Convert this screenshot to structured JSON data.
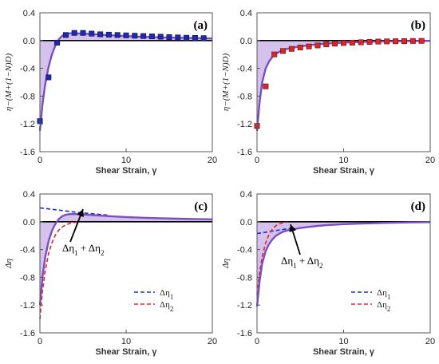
{
  "chart_data": [
    {
      "type": "line",
      "panel_label": "(a)",
      "xlabel": "Shear Strain, γ",
      "ylabel": "η−(M+(1−N)D)",
      "xlim": [
        0,
        20
      ],
      "ylim": [
        -1.6,
        0.4
      ],
      "xticks": [
        "0",
        "10",
        "20"
      ],
      "yticks": [
        "0.4",
        "0.0",
        "-0.4",
        "-0.8",
        "-1.2",
        "-1.6"
      ],
      "fill_color": "#cdb7ea",
      "curve_color": "#7c4fbf",
      "marker_color": "#1f2aa8",
      "marker_edge": "#0a0f60",
      "curve": {
        "x": [
          0,
          0.3,
          0.6,
          1.0,
          1.4,
          1.8,
          2.2,
          2.6,
          3.0,
          3.5,
          4.0,
          5,
          6,
          7,
          8,
          10,
          12,
          14,
          16,
          18,
          20
        ],
        "y": [
          -1.3,
          -0.92,
          -0.64,
          -0.38,
          -0.2,
          -0.07,
          0.02,
          0.07,
          0.095,
          0.105,
          0.105,
          0.1,
          0.093,
          0.085,
          0.077,
          0.064,
          0.054,
          0.046,
          0.04,
          0.035,
          0.03
        ]
      },
      "markers": {
        "x": [
          0,
          1,
          2,
          3,
          4,
          5,
          6,
          7,
          8,
          9,
          10,
          11,
          12,
          13,
          14,
          15,
          16,
          17,
          18,
          19
        ],
        "y": [
          -1.16,
          -0.53,
          -0.03,
          0.08,
          0.11,
          0.11,
          0.1,
          0.09,
          0.085,
          0.08,
          0.075,
          0.07,
          0.065,
          0.06,
          0.055,
          0.05,
          0.045,
          0.04,
          0.038,
          0.035
        ]
      },
      "legend": []
    },
    {
      "type": "line",
      "panel_label": "(b)",
      "xlabel": "Shear Strain, γ",
      "ylabel": "η−(M+(1−N)D)",
      "xlim": [
        0,
        20
      ],
      "ylim": [
        -1.6,
        0.4
      ],
      "xticks": [
        "0",
        "10",
        "20"
      ],
      "yticks": [
        "0.4",
        "0.0",
        "-0.4",
        "-0.8",
        "-1.2",
        "-1.6"
      ],
      "fill_color": "#cdb7ea",
      "curve_color": "#7c4fbf",
      "marker_color": "#d8262a",
      "marker_edge": "#6a0b0d",
      "curve": {
        "x": [
          0,
          0.3,
          0.6,
          1.0,
          1.4,
          1.8,
          2.2,
          2.6,
          3.0,
          3.5,
          4.0,
          5,
          6,
          7,
          8,
          10,
          12,
          14,
          16,
          18,
          20
        ],
        "y": [
          -1.3,
          -0.88,
          -0.6,
          -0.4,
          -0.3,
          -0.23,
          -0.19,
          -0.16,
          -0.14,
          -0.12,
          -0.105,
          -0.085,
          -0.068,
          -0.055,
          -0.045,
          -0.03,
          -0.02,
          -0.014,
          -0.01,
          -0.007,
          -0.005
        ]
      },
      "markers": {
        "x": [
          0,
          1,
          2,
          3,
          4,
          5,
          6,
          7,
          8,
          9,
          10,
          11,
          12,
          13,
          14,
          15,
          16,
          17,
          18,
          19
        ],
        "y": [
          -1.23,
          -0.66,
          -0.2,
          -0.15,
          -0.12,
          -0.1,
          -0.085,
          -0.07,
          -0.055,
          -0.045,
          -0.035,
          -0.03,
          -0.025,
          -0.02,
          -0.015,
          -0.012,
          -0.01,
          -0.008,
          -0.006,
          -0.005
        ]
      },
      "legend": []
    },
    {
      "type": "line",
      "panel_label": "(c)",
      "xlabel": "Shear Strain, γ",
      "ylabel": "Δη",
      "xlim": [
        0,
        20
      ],
      "ylim": [
        -1.6,
        0.4
      ],
      "xticks": [
        "0",
        "10",
        "20"
      ],
      "yticks": [
        "0.4",
        "0.0",
        "-0.4",
        "-0.8",
        "-1.2",
        "-1.6"
      ],
      "fill_color": "#cdb7ea",
      "curve_color": "#7c4fbf",
      "annotation": "Δη1 + Δη2",
      "curve": {
        "x": [
          0,
          0.3,
          0.6,
          1.0,
          1.4,
          1.8,
          2.2,
          2.6,
          3.0,
          3.5,
          4.0,
          5,
          6,
          7,
          8,
          10,
          12,
          14,
          16,
          18,
          20
        ],
        "y": [
          -1.2,
          -0.8,
          -0.52,
          -0.28,
          -0.13,
          -0.03,
          0.04,
          0.08,
          0.1,
          0.11,
          0.112,
          0.105,
          0.097,
          0.089,
          0.081,
          0.068,
          0.058,
          0.05,
          0.044,
          0.039,
          0.034
        ]
      },
      "dashed": [
        {
          "name": "Δη1",
          "color": "#1f2ad0",
          "x": [
            0,
            1,
            2,
            3,
            4,
            5,
            6,
            7,
            8
          ],
          "y": [
            0.2,
            0.185,
            0.17,
            0.155,
            0.14,
            0.128,
            0.116,
            0.105,
            0.095
          ]
        },
        {
          "name": "Δη2",
          "color": "#e0262a",
          "x": [
            0,
            0.3,
            0.6,
            1.0,
            1.4,
            1.8,
            2.2,
            2.6,
            3.0,
            3.5,
            4.0,
            4.5
          ],
          "y": [
            -1.4,
            -1.0,
            -0.72,
            -0.46,
            -0.3,
            -0.19,
            -0.12,
            -0.075,
            -0.045,
            -0.022,
            -0.01,
            -0.004
          ]
        }
      ],
      "legend": [
        {
          "name": "Δη1",
          "color": "#1f2ad0"
        },
        {
          "name": "Δη2",
          "color": "#e0262a"
        }
      ]
    },
    {
      "type": "line",
      "panel_label": "(d)",
      "xlabel": "Shear Strain, γ",
      "ylabel": "Δη",
      "xlim": [
        0,
        20
      ],
      "ylim": [
        -1.6,
        0.4
      ],
      "xticks": [
        "0",
        "10",
        "20"
      ],
      "yticks": [
        "0.4",
        "0.0",
        "-0.4",
        "-0.8",
        "-1.2",
        "-1.6"
      ],
      "fill_color": "#cdb7ea",
      "curve_color": "#7c4fbf",
      "annotation": "Δη1 + Δη2",
      "curve": {
        "x": [
          0,
          0.3,
          0.6,
          1.0,
          1.4,
          1.8,
          2.2,
          2.6,
          3.0,
          3.5,
          4.0,
          5,
          6,
          7,
          8,
          10,
          12,
          14,
          16,
          18,
          20
        ],
        "y": [
          -1.22,
          -0.85,
          -0.6,
          -0.42,
          -0.32,
          -0.25,
          -0.2,
          -0.17,
          -0.145,
          -0.125,
          -0.11,
          -0.09,
          -0.073,
          -0.06,
          -0.05,
          -0.035,
          -0.025,
          -0.018,
          -0.013,
          -0.009,
          -0.006
        ]
      },
      "dashed": [
        {
          "name": "Δη1",
          "color": "#1f2ad0",
          "x": [
            0,
            1,
            2,
            3,
            4
          ],
          "y": [
            -0.17,
            -0.15,
            -0.13,
            -0.11,
            -0.095
          ]
        },
        {
          "name": "Δη2",
          "color": "#e0262a",
          "x": [
            0,
            0.3,
            0.6,
            1.0,
            1.4,
            1.8,
            2.2,
            2.6,
            3.0,
            3.5
          ],
          "y": [
            -1.05,
            -0.72,
            -0.5,
            -0.3,
            -0.18,
            -0.1,
            -0.055,
            -0.03,
            -0.015,
            -0.005
          ]
        }
      ],
      "legend": [
        {
          "name": "Δη1",
          "color": "#1f2ad0"
        },
        {
          "name": "Δη2",
          "color": "#e0262a"
        }
      ]
    }
  ]
}
